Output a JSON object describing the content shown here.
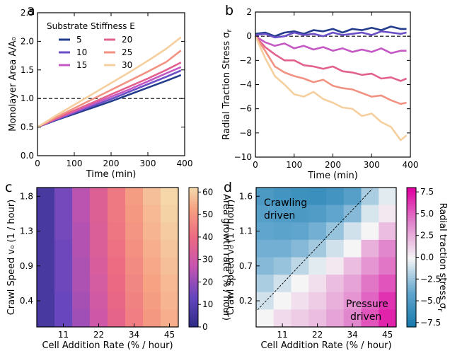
{
  "chart_data": [
    {
      "panel_letter": "a",
      "type": "line",
      "xlabel": "Time (min)",
      "ylabel": "Monolayer Area A/A₀",
      "xlim": [
        0,
        400
      ],
      "ylim": [
        0.0,
        2.5
      ],
      "xticks": [
        "0",
        "100",
        "200",
        "300",
        "400"
      ],
      "yticks": [
        "0.0",
        "0.5",
        "1.0",
        "1.5",
        "2.0",
        "2.5"
      ],
      "reference_line": {
        "y": 1.0,
        "style": "dashed"
      },
      "legend_title": "Substrate Stiffness E",
      "legend_position": "top-left",
      "x": [
        0,
        50,
        100,
        150,
        200,
        250,
        300,
        350,
        390
      ],
      "series": [
        {
          "name": "5",
          "color": "#233c8c",
          "values": [
            0.5,
            0.62,
            0.73,
            0.84,
            0.95,
            1.07,
            1.19,
            1.31,
            1.41
          ]
        },
        {
          "name": "10",
          "color": "#6a4fc7",
          "values": [
            0.5,
            0.63,
            0.75,
            0.87,
            0.99,
            1.12,
            1.25,
            1.38,
            1.49
          ]
        },
        {
          "name": "15",
          "color": "#c458c4",
          "values": [
            0.5,
            0.64,
            0.77,
            0.9,
            1.03,
            1.16,
            1.3,
            1.44,
            1.55
          ]
        },
        {
          "name": "20",
          "color": "#e2618f",
          "values": [
            0.5,
            0.65,
            0.79,
            0.93,
            1.07,
            1.21,
            1.35,
            1.5,
            1.63
          ]
        },
        {
          "name": "25",
          "color": "#f19282",
          "values": [
            0.5,
            0.67,
            0.83,
            0.99,
            1.15,
            1.31,
            1.47,
            1.64,
            1.84
          ]
        },
        {
          "name": "30",
          "color": "#f5cf9e",
          "values": [
            0.5,
            0.7,
            0.89,
            1.08,
            1.27,
            1.46,
            1.66,
            1.87,
            2.07
          ]
        }
      ]
    },
    {
      "panel_letter": "b",
      "type": "line",
      "xlabel": "Time (min)",
      "ylabel": "Radial Traction Stress σ",
      "ylabel_sub": "r",
      "xlim": [
        0,
        400
      ],
      "ylim": [
        -10,
        2
      ],
      "xticks": [
        "0",
        "100",
        "200",
        "300",
        "400"
      ],
      "yticks": [
        "−10",
        "−8",
        "−6",
        "−4",
        "−2",
        "0",
        "2"
      ],
      "reference_line": {
        "y": 0,
        "style": "dashed"
      },
      "x": [
        0,
        25,
        50,
        75,
        100,
        125,
        150,
        175,
        200,
        225,
        250,
        275,
        300,
        325,
        350,
        375,
        390
      ],
      "series": [
        {
          "name": "5",
          "color": "#233c8c",
          "values": [
            0.2,
            0.3,
            0.0,
            0.3,
            0.4,
            0.2,
            0.5,
            0.4,
            0.6,
            0.3,
            0.6,
            0.5,
            0.7,
            0.5,
            0.8,
            0.6,
            0.6
          ]
        },
        {
          "name": "10",
          "color": "#6a4fc7",
          "values": [
            0.1,
            0.2,
            -0.1,
            0.0,
            0.3,
            0.1,
            0.2,
            0.0,
            0.3,
            0.1,
            0.2,
            0.3,
            0.1,
            0.4,
            0.3,
            0.2,
            0.3
          ]
        },
        {
          "name": "15",
          "color": "#c458c4",
          "values": [
            0.0,
            -0.5,
            -0.8,
            -0.6,
            -1.0,
            -0.8,
            -1.1,
            -0.9,
            -1.2,
            -1.0,
            -1.3,
            -1.1,
            -1.3,
            -1.0,
            -1.4,
            -1.2,
            -1.2
          ]
        },
        {
          "name": "20",
          "color": "#e2618f",
          "values": [
            0.0,
            -0.9,
            -1.5,
            -2.0,
            -2.0,
            -2.4,
            -2.5,
            -2.7,
            -2.5,
            -2.9,
            -3.0,
            -3.2,
            -3.1,
            -3.5,
            -3.4,
            -3.7,
            -3.5
          ]
        },
        {
          "name": "25",
          "color": "#f19282",
          "values": [
            0.0,
            -1.2,
            -2.5,
            -3.0,
            -3.3,
            -3.5,
            -3.8,
            -3.6,
            -4.1,
            -4.3,
            -4.4,
            -4.7,
            -5.0,
            -4.9,
            -5.3,
            -5.6,
            -5.5
          ]
        },
        {
          "name": "30",
          "color": "#f5cf9e",
          "values": [
            0.0,
            -1.8,
            -3.3,
            -4.0,
            -4.8,
            -5.0,
            -4.6,
            -5.2,
            -5.5,
            -5.9,
            -6.0,
            -6.6,
            -6.4,
            -7.1,
            -7.5,
            -8.6,
            -8.2
          ]
        }
      ]
    },
    {
      "panel_letter": "c",
      "type": "heatmap",
      "xlabel": "Cell Addition Rate (% / hour)",
      "ylabel": "Crawl Speed v₀ (1 / hour)",
      "xticks": [
        "11",
        "22",
        "34",
        "45"
      ],
      "yticks": [
        "1.8",
        "1.3",
        "0.9",
        "0.4"
      ],
      "colorbar_label": "Area growth rate (% / hour)",
      "colorbar_ticks": [
        "0",
        "10",
        "20",
        "30",
        "40",
        "50",
        "60"
      ],
      "colorbar_range": [
        0,
        62
      ],
      "colormap": "plasma",
      "rows_top_to_bottom": [
        [
          7,
          16,
          26,
          35,
          44,
          52,
          58,
          62
        ],
        [
          7,
          16,
          26,
          35,
          44,
          51,
          57,
          61
        ],
        [
          7,
          16,
          25,
          34,
          43,
          50,
          56,
          60
        ],
        [
          7,
          15,
          25,
          34,
          42,
          49,
          55,
          59
        ],
        [
          7,
          15,
          24,
          33,
          41,
          48,
          54,
          58
        ],
        [
          7,
          15,
          24,
          32,
          40,
          47,
          53,
          57
        ],
        [
          7,
          14,
          23,
          31,
          39,
          46,
          52,
          56
        ],
        [
          7,
          14,
          22,
          30,
          38,
          45,
          51,
          55
        ]
      ]
    },
    {
      "panel_letter": "d",
      "type": "heatmap",
      "xlabel": "Cell Addition Rate (% / hour)",
      "ylabel": "Crawl Speed v₀ (1 / hour)",
      "xticks": [
        "11",
        "22",
        "34",
        "45"
      ],
      "yticks": [
        "1.6",
        "1.1",
        "0.7",
        "0.2"
      ],
      "colorbar_label": "Radial traction stress σ",
      "colorbar_label_sub": "r",
      "colorbar_ticks": [
        "7.5",
        "5.0",
        "2.5",
        "0.0",
        "−2.5",
        "−5.0",
        "−7.5"
      ],
      "colorbar_range": [
        -8,
        8
      ],
      "colormap": "cyan-white-magenta",
      "annotations": [
        {
          "lines": [
            "Crawling",
            "driven"
          ],
          "anchor": "top-left"
        },
        {
          "lines": [
            "Pressure",
            "driven"
          ],
          "anchor": "bottom-right"
        }
      ],
      "divider": {
        "style": "dashed",
        "from": "bottom-left",
        "to": "top-right"
      },
      "rows_top_to_bottom": [
        [
          -5.0,
          -5.5,
          -5.8,
          -6.0,
          -5.5,
          -4.5,
          -2.0,
          -0.5
        ],
        [
          -4.5,
          -4.8,
          -5.0,
          -4.8,
          -4.0,
          -3.0,
          -0.8,
          0.5
        ],
        [
          -4.0,
          -4.2,
          -4.0,
          -3.5,
          -2.5,
          -1.0,
          0.0,
          2.0
        ],
        [
          -3.5,
          -3.5,
          -3.0,
          -2.2,
          -1.0,
          0.0,
          2.5,
          4.0
        ],
        [
          -3.0,
          -2.5,
          -1.5,
          -0.5,
          0.5,
          2.0,
          3.5,
          4.5
        ],
        [
          -2.0,
          -1.0,
          0.0,
          0.8,
          2.0,
          3.0,
          4.5,
          5.5
        ],
        [
          -1.0,
          0.0,
          0.8,
          1.5,
          2.5,
          3.5,
          5.0,
          6.5
        ],
        [
          0.0,
          1.0,
          1.5,
          2.0,
          3.0,
          4.0,
          5.5,
          7.0
        ]
      ]
    }
  ]
}
